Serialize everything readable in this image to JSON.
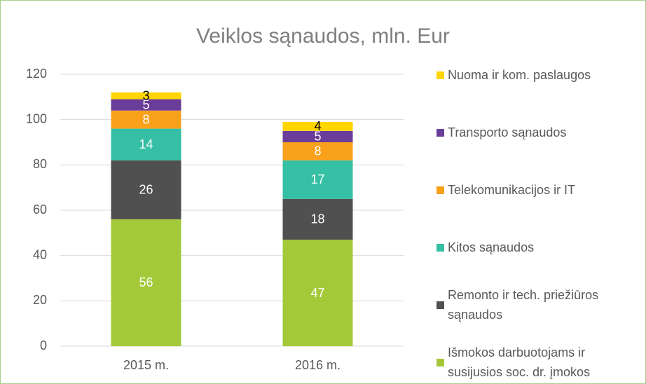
{
  "chart_data": {
    "type": "stacked_bar",
    "title": "Veiklos sąnaudos, mln. Eur",
    "categories": [
      "2015 m.",
      "2016 m."
    ],
    "series": [
      {
        "name": "Išmokos darbuotojams ir susijusios soc. dr. įmokos",
        "color": "#a3c939",
        "values": [
          56,
          47
        ]
      },
      {
        "name": "Remonto ir tech. priežiūros sąnaudos",
        "color": "#505050",
        "values": [
          26,
          18
        ]
      },
      {
        "name": "Kitos sąnaudos",
        "color": "#35bfa4",
        "values": [
          14,
          17
        ]
      },
      {
        "name": "Telekomunikacijos ir IT",
        "color": "#f9a11b",
        "values": [
          8,
          8
        ]
      },
      {
        "name": "Transporto sąnaudos",
        "color": "#6b3d9a",
        "values": [
          5,
          5
        ]
      },
      {
        "name": "Nuoma ir kom. paslaugos",
        "color": "#ffd500",
        "values": [
          3,
          4
        ]
      }
    ],
    "ylim": [
      0,
      120
    ],
    "yticks": [
      0,
      20,
      40,
      60,
      80,
      100,
      120
    ],
    "grid": true,
    "legend": "right"
  }
}
